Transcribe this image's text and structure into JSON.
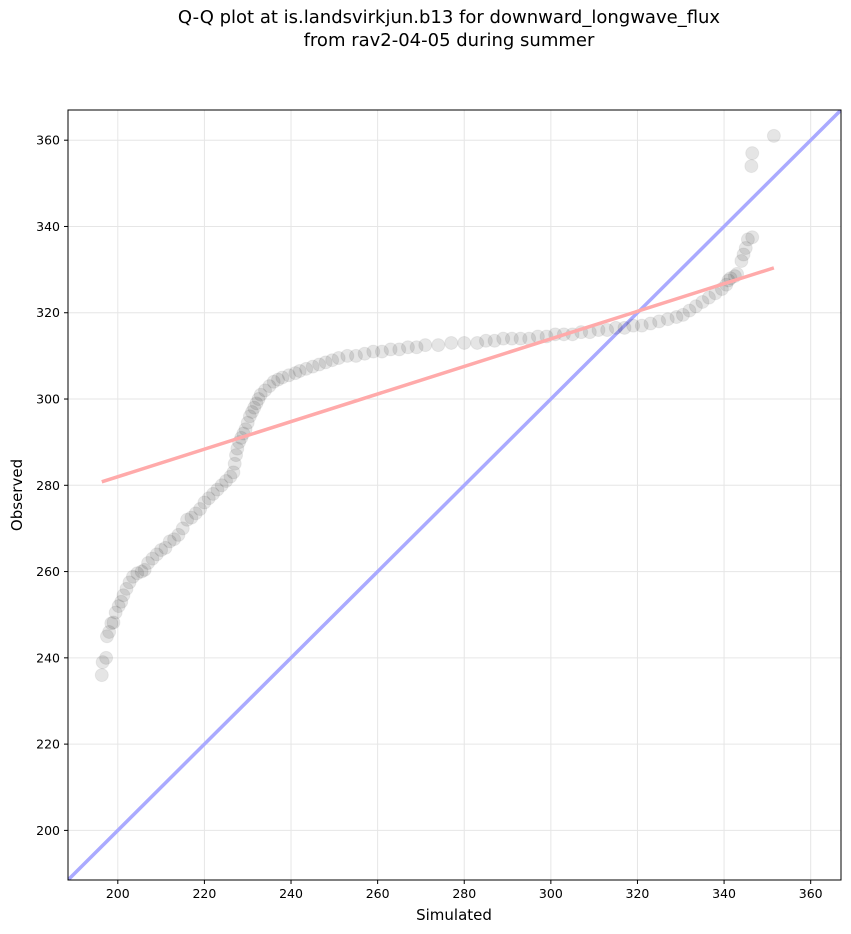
{
  "chart_data": {
    "type": "scatter",
    "title": "Q-Q plot at is.landsvirkjun.b13 for downward_longwave_flux",
    "subtitle": "from rav2-04-05 during summer",
    "xlabel": "Simulated",
    "ylabel": "Observed",
    "xlim": [
      188.5,
      367
    ],
    "ylim": [
      188.5,
      367
    ],
    "xticks": [
      200,
      220,
      240,
      260,
      280,
      300,
      320,
      340,
      360
    ],
    "yticks": [
      200,
      220,
      240,
      260,
      280,
      300,
      320,
      340,
      360
    ],
    "grid": true,
    "points": [
      [
        196.3,
        236.0
      ],
      [
        196.5,
        239.0
      ],
      [
        197.3,
        240.0
      ],
      [
        197.5,
        245.0
      ],
      [
        198.0,
        246.0
      ],
      [
        198.5,
        248.0
      ],
      [
        199.0,
        248.2
      ],
      [
        199.5,
        250.5
      ],
      [
        200.2,
        252.0
      ],
      [
        200.8,
        253.0
      ],
      [
        201.3,
        254.5
      ],
      [
        202.0,
        256.0
      ],
      [
        202.7,
        257.5
      ],
      [
        203.5,
        258.8
      ],
      [
        204.5,
        259.6
      ],
      [
        205.5,
        260.0
      ],
      [
        206.2,
        260.4
      ],
      [
        207.0,
        262.0
      ],
      [
        208.0,
        263.0
      ],
      [
        209.0,
        264.0
      ],
      [
        210.0,
        265.0
      ],
      [
        211.0,
        265.5
      ],
      [
        212.0,
        267.0
      ],
      [
        213.0,
        267.5
      ],
      [
        214.0,
        268.5
      ],
      [
        215.0,
        270.0
      ],
      [
        216.0,
        272.0
      ],
      [
        217.0,
        272.5
      ],
      [
        218.0,
        273.5
      ],
      [
        219.0,
        274.5
      ],
      [
        220.0,
        276.0
      ],
      [
        221.0,
        277.0
      ],
      [
        222.0,
        278.0
      ],
      [
        223.0,
        279.0
      ],
      [
        224.0,
        280.0
      ],
      [
        225.0,
        281.0
      ],
      [
        226.0,
        282.0
      ],
      [
        226.7,
        283.0
      ],
      [
        227.0,
        285.0
      ],
      [
        227.3,
        287.0
      ],
      [
        227.6,
        288.5
      ],
      [
        228.0,
        290.0
      ],
      [
        228.5,
        291.0
      ],
      [
        229.0,
        292.0
      ],
      [
        229.5,
        293.0
      ],
      [
        230.0,
        294.5
      ],
      [
        230.5,
        296.0
      ],
      [
        231.0,
        297.0
      ],
      [
        231.5,
        298.0
      ],
      [
        232.0,
        299.0
      ],
      [
        232.5,
        300.0
      ],
      [
        233.0,
        301.0
      ],
      [
        234.0,
        302.0
      ],
      [
        235.0,
        303.0
      ],
      [
        236.0,
        304.0
      ],
      [
        237.0,
        304.5
      ],
      [
        238.0,
        305.0
      ],
      [
        239.5,
        305.5
      ],
      [
        241.0,
        306.0
      ],
      [
        242.0,
        306.5
      ],
      [
        243.5,
        307.0
      ],
      [
        245.0,
        307.5
      ],
      [
        246.5,
        308.0
      ],
      [
        248.0,
        308.5
      ],
      [
        249.5,
        309.0
      ],
      [
        251.0,
        309.5
      ],
      [
        253.0,
        310.0
      ],
      [
        255.0,
        310.0
      ],
      [
        257.0,
        310.5
      ],
      [
        259.0,
        311.0
      ],
      [
        261.0,
        311.0
      ],
      [
        263.0,
        311.5
      ],
      [
        265.0,
        311.5
      ],
      [
        267.0,
        312.0
      ],
      [
        269.0,
        312.0
      ],
      [
        271.0,
        312.5
      ],
      [
        274.0,
        312.5
      ],
      [
        277.0,
        313.0
      ],
      [
        280.0,
        313.0
      ],
      [
        283.0,
        313.0
      ],
      [
        285.0,
        313.5
      ],
      [
        287.0,
        313.5
      ],
      [
        289.0,
        314.0
      ],
      [
        291.0,
        314.0
      ],
      [
        293.0,
        314.0
      ],
      [
        295.0,
        314.0
      ],
      [
        297.0,
        314.5
      ],
      [
        299.0,
        314.5
      ],
      [
        301.0,
        315.0
      ],
      [
        303.0,
        315.0
      ],
      [
        305.0,
        315.0
      ],
      [
        307.0,
        315.5
      ],
      [
        309.0,
        315.5
      ],
      [
        311.0,
        316.0
      ],
      [
        313.0,
        316.0
      ],
      [
        315.0,
        316.5
      ],
      [
        317.0,
        316.5
      ],
      [
        319.0,
        317.0
      ],
      [
        321.0,
        317.0
      ],
      [
        323.0,
        317.5
      ],
      [
        325.0,
        318.0
      ],
      [
        327.0,
        318.5
      ],
      [
        329.0,
        319.0
      ],
      [
        330.5,
        319.5
      ],
      [
        332.0,
        320.5
      ],
      [
        333.5,
        321.5
      ],
      [
        335.0,
        322.5
      ],
      [
        336.5,
        323.5
      ],
      [
        338.0,
        324.5
      ],
      [
        339.5,
        325.5
      ],
      [
        340.5,
        326.5
      ],
      [
        341.0,
        327.5
      ],
      [
        341.5,
        328.0
      ],
      [
        342.5,
        328.5
      ],
      [
        343.0,
        329.0
      ],
      [
        344.0,
        332.0
      ],
      [
        344.5,
        333.5
      ],
      [
        345.0,
        335.0
      ],
      [
        345.5,
        337.0
      ],
      [
        346.5,
        337.5
      ],
      [
        346.3,
        354.0
      ],
      [
        346.5,
        357.0
      ],
      [
        351.5,
        361.0
      ]
    ],
    "reference_line": {
      "name": "1:1",
      "color": "#aaaaff",
      "points": [
        [
          188.5,
          188.5
        ],
        [
          367,
          367
        ]
      ]
    },
    "fit_line": {
      "color": "#ffaaaa",
      "points": [
        [
          196.3,
          280.8
        ],
        [
          351.5,
          330.4
        ]
      ]
    },
    "marker_color": "#000000",
    "marker_alpha": 0.1
  }
}
